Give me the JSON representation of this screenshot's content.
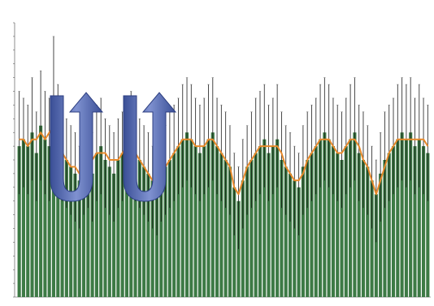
{
  "chart_data": {
    "type": "bar",
    "title": "",
    "xlabel": "",
    "ylabel": "",
    "ylim": [
      0,
      40
    ],
    "yticks": [
      0,
      2,
      4,
      6,
      8,
      10,
      12,
      14,
      16,
      18,
      20,
      22,
      24,
      26,
      28,
      30,
      32,
      34,
      36,
      38,
      40
    ],
    "grid": false,
    "legend": "none",
    "bar_color": "#3d7a45",
    "overlay_line_color": "#e8892a",
    "whisker_color": "#111111",
    "arrow_color": "#4a5fa8",
    "n_bars": 96,
    "series": [
      {
        "type": "bar",
        "values": [
          22,
          23,
          22,
          24,
          21,
          25,
          23,
          22,
          28,
          24,
          21,
          20,
          19,
          18,
          17,
          19,
          20,
          18,
          21,
          22,
          20,
          19,
          18,
          20,
          21,
          22,
          23,
          21,
          20,
          19,
          18,
          17,
          16,
          18,
          19,
          20,
          21,
          22,
          23,
          24,
          23,
          22,
          21,
          22,
          23,
          24,
          22,
          21,
          20,
          19,
          16,
          14,
          17,
          19,
          20,
          21,
          22,
          23,
          21,
          22,
          23,
          20,
          19,
          18,
          17,
          16,
          19,
          20,
          21,
          22,
          23,
          24,
          23,
          22,
          21,
          20,
          22,
          23,
          24,
          21,
          20,
          19,
          17,
          15,
          18,
          20,
          21,
          22,
          23,
          24,
          23,
          24,
          22,
          23,
          22,
          21
        ]
      },
      {
        "type": "line",
        "values": [
          23,
          23,
          22,
          23,
          23,
          24,
          23,
          24,
          25,
          23,
          21,
          20,
          19,
          19,
          18,
          19,
          19,
          20,
          21,
          21,
          21,
          20,
          20,
          20,
          21,
          22,
          22,
          21,
          20,
          19,
          18,
          17,
          17,
          18,
          19,
          20,
          21,
          22,
          23,
          23,
          23,
          22,
          22,
          22,
          23,
          23,
          22,
          21,
          20,
          19,
          16,
          15,
          17,
          19,
          20,
          21,
          22,
          22,
          22,
          22,
          22,
          21,
          19,
          18,
          17,
          17,
          18,
          20,
          21,
          22,
          23,
          23,
          23,
          22,
          21,
          21,
          22,
          23,
          23,
          22,
          20,
          19,
          17,
          15,
          17,
          19,
          21,
          22,
          23,
          23,
          23,
          23,
          23,
          23,
          23,
          22
        ]
      }
    ],
    "whisker_high": [
      30,
      29,
      28,
      32,
      27,
      33,
      30,
      29,
      38,
      31,
      28,
      26,
      25,
      24,
      22,
      25,
      27,
      24,
      28,
      29,
      26,
      25,
      24,
      26,
      27,
      29,
      30,
      27,
      26,
      25,
      24,
      22,
      21,
      23,
      25,
      27,
      28,
      29,
      31,
      32,
      31,
      29,
      28,
      29,
      31,
      32,
      29,
      28,
      27,
      25,
      21,
      19,
      23,
      25,
      27,
      29,
      30,
      31,
      28,
      29,
      31,
      27,
      25,
      24,
      22,
      21,
      25,
      27,
      28,
      29,
      31,
      32,
      31,
      29,
      28,
      27,
      29,
      31,
      32,
      28,
      27,
      25,
      22,
      20,
      24,
      27,
      28,
      29,
      31,
      32,
      31,
      32,
      29,
      31,
      29,
      28
    ],
    "whisker_low": [
      15,
      16,
      15,
      17,
      14,
      17,
      15,
      14,
      18,
      16,
      14,
      13,
      12,
      11,
      10,
      12,
      13,
      11,
      14,
      15,
      13,
      12,
      11,
      13,
      14,
      15,
      16,
      14,
      13,
      12,
      11,
      10,
      9,
      11,
      12,
      13,
      14,
      15,
      16,
      17,
      16,
      15,
      14,
      15,
      16,
      17,
      15,
      14,
      13,
      12,
      9,
      7,
      10,
      12,
      13,
      14,
      15,
      16,
      14,
      15,
      16,
      13,
      12,
      11,
      10,
      9,
      12,
      13,
      14,
      15,
      16,
      17,
      16,
      15,
      14,
      13,
      15,
      16,
      17,
      14,
      13,
      12,
      10,
      8,
      11,
      13,
      14,
      15,
      16,
      17,
      16,
      17,
      15,
      16,
      15,
      14
    ]
  }
}
